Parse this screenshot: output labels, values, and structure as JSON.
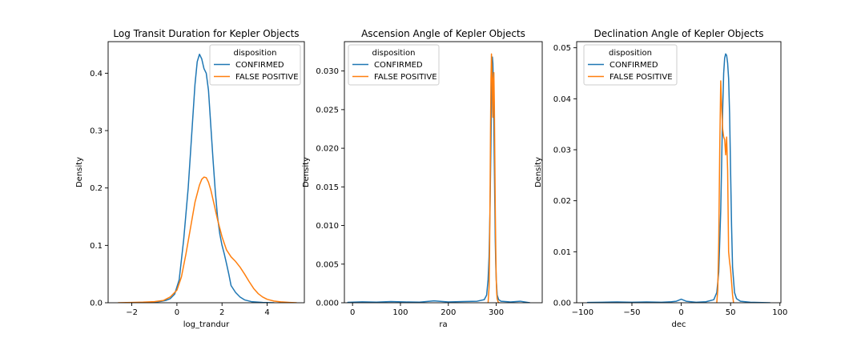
{
  "chart_data": [
    {
      "type": "line",
      "title": "Log Transit Duration for Kepler Objects",
      "xlabel": "log_trandur",
      "ylabel": "Density",
      "xlim": [
        -3.05,
        5.65
      ],
      "ylim": [
        0,
        0.455
      ],
      "xticks": [
        -2,
        0,
        2,
        4
      ],
      "xtick_labels": [
        "−2",
        "0",
        "2",
        "4"
      ],
      "yticks": [
        0.0,
        0.1,
        0.2,
        0.3,
        0.4
      ],
      "ytick_labels": [
        "0.0",
        "0.1",
        "0.2",
        "0.3",
        "0.4"
      ],
      "grid": false,
      "legend_placement": "top-right",
      "legend_title": "disposition",
      "series": [
        {
          "name": "CONFIRMED",
          "color": "#1f77b4",
          "x": [
            -2.3,
            -1.5,
            -1.0,
            -0.7,
            -0.5,
            -0.3,
            -0.1,
            0.1,
            0.3,
            0.5,
            0.6,
            0.7,
            0.8,
            0.9,
            1.0,
            1.1,
            1.2,
            1.3,
            1.4,
            1.5,
            1.6,
            1.7,
            1.8,
            1.9,
            2.0,
            2.1,
            2.2,
            2.3,
            2.4,
            2.6,
            2.8,
            3.0,
            3.3,
            3.8,
            4.3
          ],
          "y": [
            0.0,
            0.0005,
            0.001,
            0.0025,
            0.004,
            0.007,
            0.015,
            0.04,
            0.11,
            0.2,
            0.26,
            0.32,
            0.38,
            0.42,
            0.433,
            0.425,
            0.408,
            0.4,
            0.37,
            0.31,
            0.25,
            0.195,
            0.15,
            0.12,
            0.1,
            0.085,
            0.068,
            0.05,
            0.03,
            0.018,
            0.01,
            0.005,
            0.002,
            0.0005,
            0.0
          ]
        },
        {
          "name": "FALSE POSITIVE",
          "color": "#ff7f0e",
          "x": [
            -2.6,
            -2.0,
            -1.5,
            -1.0,
            -0.6,
            -0.3,
            0.0,
            0.2,
            0.4,
            0.6,
            0.8,
            1.0,
            1.1,
            1.2,
            1.3,
            1.4,
            1.5,
            1.6,
            1.8,
            2.0,
            2.2,
            2.4,
            2.6,
            2.8,
            3.0,
            3.2,
            3.4,
            3.6,
            3.8,
            4.0,
            4.3,
            4.6,
            5.0,
            5.3
          ],
          "y": [
            0.0,
            0.0005,
            0.001,
            0.002,
            0.004,
            0.01,
            0.022,
            0.045,
            0.085,
            0.13,
            0.175,
            0.205,
            0.215,
            0.219,
            0.218,
            0.21,
            0.197,
            0.18,
            0.145,
            0.115,
            0.092,
            0.08,
            0.072,
            0.062,
            0.05,
            0.037,
            0.025,
            0.016,
            0.01,
            0.006,
            0.003,
            0.0015,
            0.0005,
            0.0
          ]
        }
      ]
    },
    {
      "type": "line",
      "title": "Ascension Angle of Kepler Objects",
      "xlabel": "ra",
      "ylabel": "Density",
      "xlim": [
        -17,
        396
      ],
      "ylim": [
        0,
        0.0338
      ],
      "xticks": [
        0,
        100,
        200,
        300
      ],
      "xtick_labels": [
        "0",
        "100",
        "200",
        "300"
      ],
      "yticks": [
        0.0,
        0.005,
        0.01,
        0.015,
        0.02,
        0.025,
        0.03
      ],
      "ytick_labels": [
        "0.000",
        "0.005",
        "0.010",
        "0.015",
        "0.020",
        "0.025",
        "0.030"
      ],
      "grid": false,
      "legend_placement": "top-left",
      "legend_title": "disposition",
      "series": [
        {
          "name": "CONFIRMED",
          "color": "#1f77b4",
          "x": [
            -10,
            20,
            50,
            80,
            110,
            140,
            170,
            200,
            230,
            260,
            275,
            280,
            283,
            285,
            287,
            289,
            290,
            291,
            292,
            293,
            294,
            295,
            296,
            297,
            298,
            299,
            300,
            302,
            305,
            310,
            330,
            350,
            370
          ],
          "y": [
            5e-05,
            0.00012,
            8e-05,
            0.00015,
            0.0001,
            8e-05,
            0.00025,
            0.0001,
            0.00015,
            0.0002,
            0.0004,
            0.001,
            0.003,
            0.006,
            0.012,
            0.021,
            0.026,
            0.029,
            0.0318,
            0.031,
            0.028,
            0.023,
            0.018,
            0.013,
            0.008,
            0.005,
            0.003,
            0.001,
            0.0004,
            0.0002,
            0.0001,
            0.0002,
            0.0
          ]
        },
        {
          "name": "FALSE POSITIVE",
          "color": "#ff7f0e",
          "x": [
            283,
            285,
            286,
            287,
            288,
            289,
            290,
            291,
            292,
            293,
            294,
            295,
            296,
            297,
            298,
            299,
            300,
            301,
            302,
            304,
            306
          ],
          "y": [
            0.0,
            0.002,
            0.006,
            0.013,
            0.022,
            0.029,
            0.0322,
            0.0305,
            0.027,
            0.024,
            0.029,
            0.0298,
            0.026,
            0.019,
            0.012,
            0.007,
            0.003,
            0.0012,
            0.0005,
            0.0001,
            0.0
          ]
        }
      ]
    },
    {
      "type": "line",
      "title": "Declination Angle of Kepler Objects",
      "xlabel": "dec",
      "ylabel": "Density",
      "xlim": [
        -106,
        101
      ],
      "ylim": [
        0,
        0.0512
      ],
      "xticks": [
        -100,
        -50,
        0,
        50,
        100
      ],
      "xtick_labels": [
        "−100",
        "−50",
        "0",
        "50",
        "100"
      ],
      "yticks": [
        0.0,
        0.01,
        0.02,
        0.03,
        0.04,
        0.05
      ],
      "ytick_labels": [
        "0.00",
        "0.01",
        "0.02",
        "0.03",
        "0.04",
        "0.05"
      ],
      "grid": false,
      "legend_placement": "top-left",
      "legend_title": "disposition",
      "series": [
        {
          "name": "CONFIRMED",
          "color": "#1f77b4",
          "x": [
            -95,
            -80,
            -65,
            -50,
            -35,
            -20,
            -10,
            -5,
            0,
            5,
            15,
            25,
            33,
            36,
            38,
            40,
            41,
            42,
            43,
            44,
            45,
            46,
            47,
            48,
            49,
            50,
            51,
            52,
            54,
            56,
            60,
            70,
            90
          ],
          "y": [
            5e-05,
            0.0001,
            0.00015,
            0.0001,
            0.00015,
            0.0001,
            0.0002,
            0.0003,
            0.0007,
            0.0003,
            0.0001,
            0.0002,
            0.0006,
            0.002,
            0.006,
            0.018,
            0.028,
            0.038,
            0.045,
            0.048,
            0.0488,
            0.0485,
            0.047,
            0.044,
            0.037,
            0.026,
            0.015,
            0.007,
            0.002,
            0.0008,
            0.0003,
            0.0001,
            0.0
          ]
        },
        {
          "name": "FALSE POSITIVE",
          "color": "#ff7f0e",
          "x": [
            36,
            37,
            38,
            39,
            40,
            41,
            42,
            43,
            44,
            45,
            46,
            47,
            48,
            49,
            50,
            51,
            52,
            53
          ],
          "y": [
            0.0,
            0.0025,
            0.012,
            0.03,
            0.0435,
            0.038,
            0.034,
            0.0325,
            0.032,
            0.029,
            0.0325,
            0.026,
            0.01,
            0.008,
            0.0065,
            0.004,
            0.0015,
            0.0
          ]
        }
      ]
    }
  ]
}
